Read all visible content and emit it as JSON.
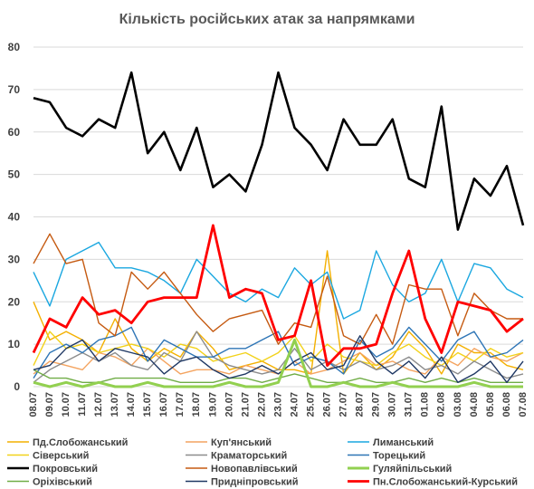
{
  "chart_data": {
    "type": "line",
    "title": "Кількість російських атак за напрямками",
    "ylim": [
      0,
      80
    ],
    "yticks": [
      0,
      10,
      20,
      30,
      40,
      50,
      60,
      70,
      80
    ],
    "grid": true,
    "legend_position": "bottom",
    "x": [
      "08.07",
      "09.07",
      "10.07",
      "11.07",
      "12.07",
      "13.07",
      "14.07",
      "15.07",
      "16.07",
      "17.07",
      "18.07",
      "19.07",
      "20.07",
      "21.07",
      "22.07",
      "23.07",
      "24.07",
      "25.07",
      "26.07",
      "27.07",
      "28.07",
      "29.07",
      "30.07",
      "31.07",
      "01.08",
      "02.08",
      "03.08",
      "04.08",
      "05.08",
      "06.08",
      "07.08"
    ],
    "series": [
      {
        "name": "Пд.Слобожанський",
        "color": "#f4b000",
        "width": 1.4,
        "values": [
          20,
          11,
          13,
          11,
          8,
          16,
          9,
          6,
          9,
          7,
          13,
          9,
          4,
          5,
          6,
          4,
          4,
          3,
          32,
          3,
          8,
          4,
          7,
          13,
          9,
          3,
          10,
          8,
          8,
          5,
          4
        ]
      },
      {
        "name": "Куп'янський",
        "color": "#f4a460",
        "width": 1.4,
        "values": [
          3,
          6,
          5,
          4,
          8,
          7,
          5,
          9,
          6,
          3,
          4,
          4,
          3,
          5,
          4,
          3,
          6,
          3,
          4,
          6,
          8,
          5,
          6,
          4,
          3,
          7,
          5,
          9,
          7,
          6,
          8
        ]
      },
      {
        "name": "Лиманський",
        "color": "#1aa7e0",
        "width": 1.4,
        "values": [
          27,
          19,
          30,
          32,
          34,
          28,
          28,
          27,
          25,
          22,
          30,
          26,
          22,
          20,
          23,
          21,
          28,
          24,
          27,
          16,
          18,
          32,
          24,
          20,
          22,
          30,
          20,
          29,
          28,
          23,
          21
        ]
      },
      {
        "name": "Сіверський",
        "color": "#f2d21b",
        "width": 1.4,
        "values": [
          5,
          13,
          9,
          10,
          8,
          9,
          10,
          9,
          7,
          10,
          9,
          6,
          7,
          8,
          6,
          8,
          12,
          6,
          10,
          7,
          6,
          5,
          8,
          10,
          7,
          5,
          8,
          6,
          9,
          7,
          8
        ]
      },
      {
        "name": "Краматорський",
        "color": "#8c8c8c",
        "width": 1.4,
        "values": [
          1,
          4,
          6,
          8,
          6,
          8,
          5,
          4,
          8,
          6,
          13,
          7,
          5,
          4,
          3,
          4,
          9,
          4,
          6,
          4,
          6,
          4,
          5,
          7,
          4,
          5,
          3,
          6,
          4,
          2,
          3
        ]
      },
      {
        "name": "Торецький",
        "color": "#2e75b6",
        "width": 1.4,
        "values": [
          2,
          8,
          10,
          8,
          11,
          12,
          14,
          6,
          11,
          9,
          7,
          7,
          9,
          9,
          11,
          13,
          5,
          7,
          6,
          3,
          11,
          7,
          9,
          14,
          10,
          6,
          11,
          13,
          7,
          8,
          11
        ]
      },
      {
        "name": "Покровський",
        "color": "#000000",
        "width": 2.6,
        "values": [
          68,
          67,
          61,
          59,
          63,
          61,
          74,
          55,
          60,
          51,
          61,
          47,
          50,
          46,
          57,
          74,
          61,
          57,
          51,
          63,
          57,
          57,
          63,
          49,
          47,
          66,
          37,
          49,
          45,
          52,
          38
        ]
      },
      {
        "name": "Новопавлівський",
        "color": "#c55a11",
        "width": 1.4,
        "values": [
          29,
          36,
          29,
          30,
          15,
          12,
          27,
          23,
          27,
          22,
          17,
          13,
          16,
          17,
          18,
          10,
          15,
          14,
          26,
          12,
          10,
          17,
          10,
          24,
          23,
          23,
          12,
          22,
          18,
          16,
          16
        ]
      },
      {
        "name": "Гуляйпільський",
        "color": "#92d050",
        "width": 3.0,
        "values": [
          1,
          0,
          1,
          0,
          1,
          0,
          0,
          1,
          0,
          0,
          0,
          0,
          1,
          0,
          0,
          1,
          11,
          0,
          0,
          1,
          0,
          0,
          1,
          0,
          0,
          0,
          0,
          1,
          0,
          0,
          0
        ]
      },
      {
        "name": "Оріхівський",
        "color": "#70ad47",
        "width": 1.4,
        "values": [
          4,
          2,
          2,
          1,
          1,
          2,
          2,
          2,
          2,
          1,
          1,
          1,
          2,
          2,
          1,
          2,
          3,
          2,
          1,
          1,
          2,
          1,
          1,
          2,
          1,
          2,
          1,
          2,
          1,
          1,
          1
        ]
      },
      {
        "name": "Придніпровський",
        "color": "#1f3864",
        "width": 1.4,
        "values": [
          4,
          5,
          9,
          11,
          6,
          9,
          8,
          7,
          3,
          6,
          7,
          4,
          2,
          3,
          5,
          3,
          6,
          8,
          4,
          5,
          12,
          6,
          3,
          6,
          2,
          7,
          1,
          3,
          6,
          1,
          6
        ]
      },
      {
        "name": "Пн.Слобожанський-Курський",
        "color": "#ff0000",
        "width": 2.8,
        "values": [
          8,
          16,
          14,
          21,
          17,
          18,
          15,
          20,
          21,
          21,
          21,
          38,
          21,
          23,
          22,
          11,
          12,
          25,
          5,
          9,
          9,
          10,
          22,
          32,
          16,
          8,
          20,
          19,
          18,
          13,
          16
        ]
      }
    ]
  }
}
